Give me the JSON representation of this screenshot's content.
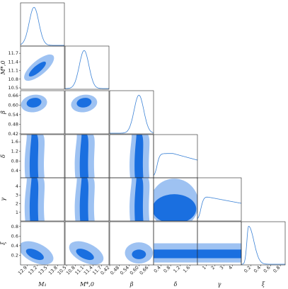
{
  "chart_data": {
    "type": "corner",
    "colors": {
      "outer": "#9ec2f2",
      "inner": "#1a6fe0",
      "line": "#3b82d6"
    },
    "parameters": [
      {
        "name": "M1",
        "label": "M₁",
        "ticks": [
          "12.9",
          "13.2",
          "13.5",
          "13.8"
        ],
        "range": [
          12.7,
          14.0
        ]
      },
      {
        "name": "M_star0",
        "label": "M*,0",
        "ticks": [
          "10.5",
          "10.8",
          "11.1",
          "11.4",
          "11.7"
        ],
        "range": [
          10.45,
          11.95
        ]
      },
      {
        "name": "beta",
        "label": "β",
        "ticks": [
          "0.42",
          "0.48",
          "0.54",
          "0.60",
          "0.66"
        ],
        "range": [
          0.42,
          0.69
        ]
      },
      {
        "name": "delta",
        "label": "δ",
        "ticks": [
          "0.4",
          "0.8",
          "1.2",
          "1.6"
        ],
        "range": [
          0.1,
          1.9
        ]
      },
      {
        "name": "gamma",
        "label": "γ",
        "ticks": [
          "1",
          "2",
          "3",
          "4"
        ],
        "range": [
          0.0,
          5.0
        ]
      },
      {
        "name": "xi",
        "label": "ξ",
        "ticks": [
          "0.2",
          "0.4",
          "0.6",
          "0.8"
        ],
        "range": [
          0.0,
          0.9
        ]
      }
    ],
    "diagonal_peaks": {
      "M1": 13.1,
      "M_star0": 11.1,
      "beta": 0.6,
      "delta": 0.9,
      "gamma": 1.0,
      "xi": 0.15
    },
    "diagonal_shapes": {
      "M1": "normal",
      "M_star0": "normal",
      "beta": "normal",
      "delta": "flat-decline",
      "gamma": "flat-decline",
      "xi": "skewed-right"
    }
  }
}
